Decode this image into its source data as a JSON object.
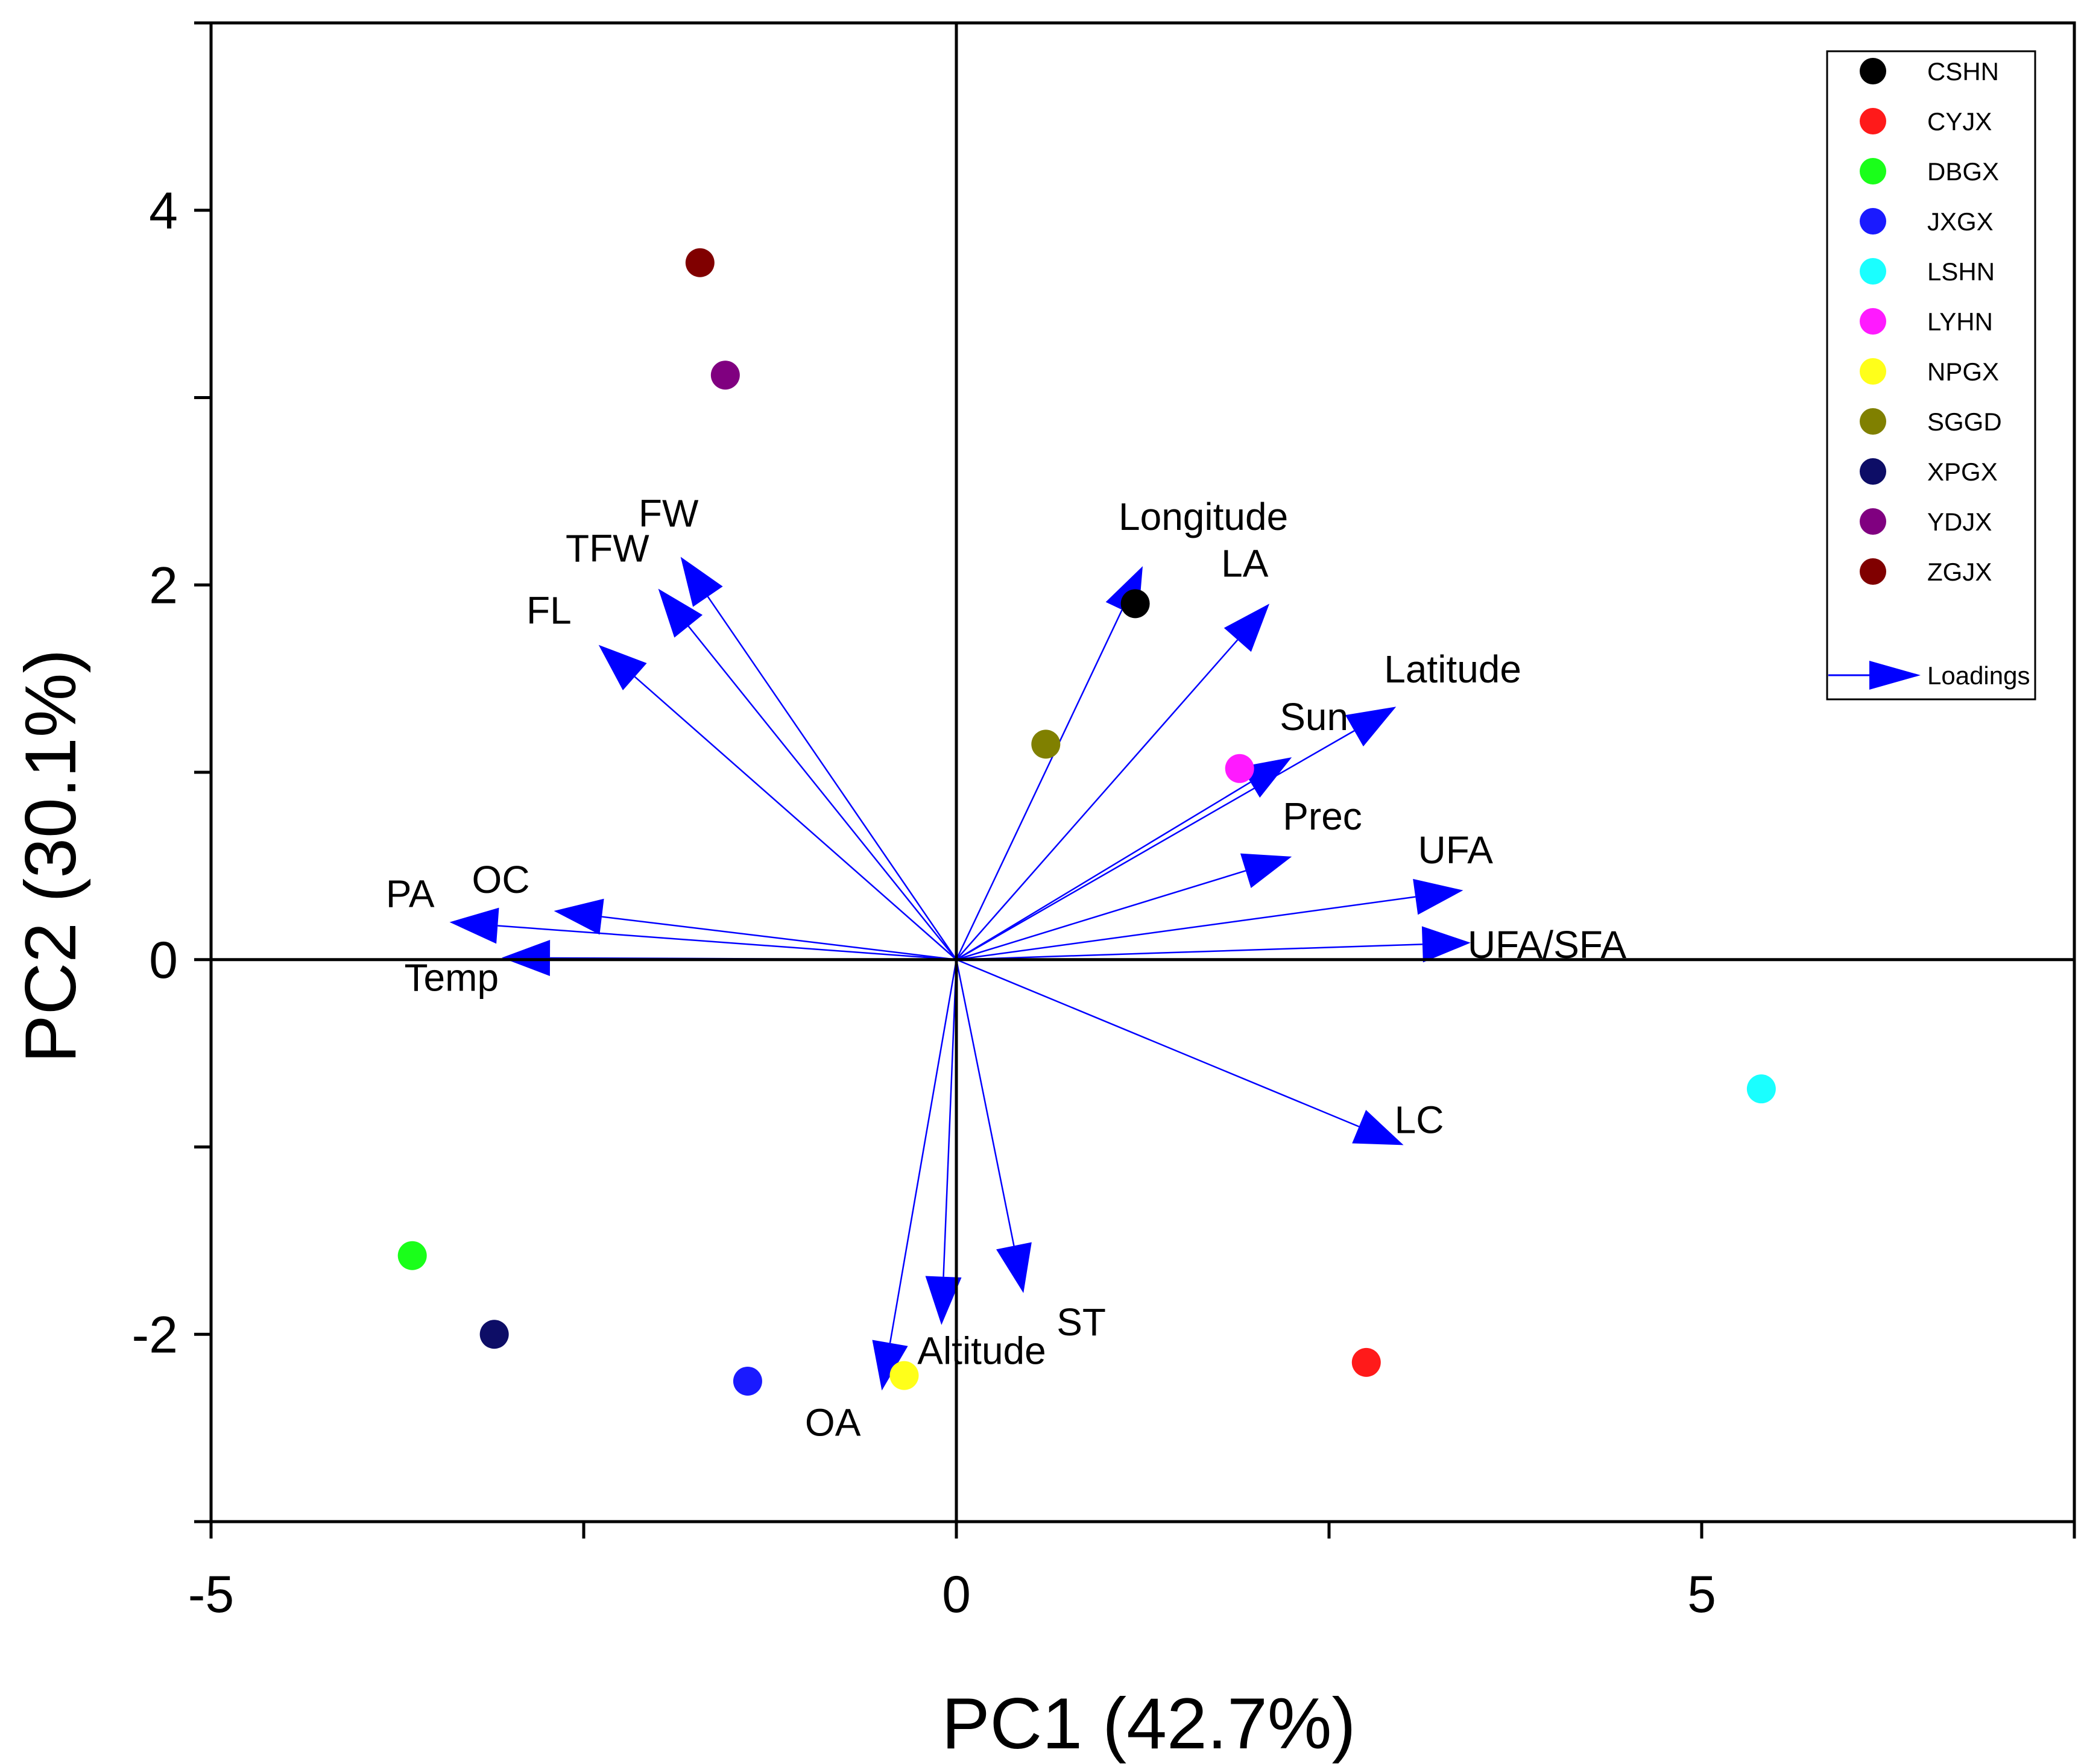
{
  "chart_data": {
    "type": "scatter",
    "title": "",
    "xlabel": "PC1 (42.7%)",
    "ylabel": "PC2 (30.1%)",
    "xlim": [
      -5,
      7.5
    ],
    "ylim": [
      -3,
      5
    ],
    "xticks": [
      -5,
      0,
      5
    ],
    "yticks": [
      -2,
      0,
      2,
      4
    ],
    "grid": false,
    "legend_position": "top-right",
    "series": [
      {
        "name": "CSHN",
        "color": "#000000",
        "x": 1.2,
        "y": 1.9
      },
      {
        "name": "CYJX",
        "color": "#ff1a1a",
        "x": 2.75,
        "y": -2.15
      },
      {
        "name": "DBGX",
        "color": "#1aff1a",
        "x": -3.65,
        "y": -1.58
      },
      {
        "name": "JXGX",
        "color": "#1a1aff",
        "x": -1.4,
        "y": -2.25
      },
      {
        "name": "LSHN",
        "color": "#1affff",
        "x": 5.4,
        "y": -0.69
      },
      {
        "name": "LYHN",
        "color": "#ff1aff",
        "x": 1.9,
        "y": 1.02
      },
      {
        "name": "NPGX",
        "color": "#ffff1a",
        "x": -0.35,
        "y": -2.22
      },
      {
        "name": "SGGD",
        "color": "#808000",
        "x": 0.6,
        "y": 1.15
      },
      {
        "name": "XPGX",
        "color": "#0d0d66",
        "x": -3.1,
        "y": -2.0
      },
      {
        "name": "YDJX",
        "color": "#800080",
        "x": -1.55,
        "y": 3.12
      },
      {
        "name": "ZGJX",
        "color": "#800000",
        "x": -1.72,
        "y": 3.72
      }
    ],
    "loadings_name": "Loadings",
    "loadings_color": "#0000ff",
    "loadings": [
      {
        "label": "Longitude",
        "x": 1.25,
        "y": 2.1
      },
      {
        "label": "LA",
        "x": 2.1,
        "y": 1.9
      },
      {
        "label": "Latitude",
        "x": 2.95,
        "y": 1.35
      },
      {
        "label": "Sun",
        "x": 2.25,
        "y": 1.08
      },
      {
        "label": "Prec",
        "x": 2.25,
        "y": 0.55
      },
      {
        "label": "UFA",
        "x": 3.4,
        "y": 0.37
      },
      {
        "label": "UFA/SFA",
        "x": 3.45,
        "y": 0.09
      },
      {
        "label": "LC",
        "x": 3.0,
        "y": -0.99
      },
      {
        "label": "ST",
        "x": 0.45,
        "y": -1.78
      },
      {
        "label": "Altitude",
        "x": -0.1,
        "y": -1.95
      },
      {
        "label": "OA",
        "x": -0.5,
        "y": -2.3
      },
      {
        "label": "FW",
        "x": -1.85,
        "y": 2.15
      },
      {
        "label": "TFW",
        "x": -2.0,
        "y": 1.98
      },
      {
        "label": "FL",
        "x": -2.4,
        "y": 1.68
      },
      {
        "label": "OC",
        "x": -2.7,
        "y": 0.26
      },
      {
        "label": "PA",
        "x": -3.4,
        "y": 0.2
      },
      {
        "label": "Temp",
        "x": -3.05,
        "y": 0.01
      }
    ]
  }
}
